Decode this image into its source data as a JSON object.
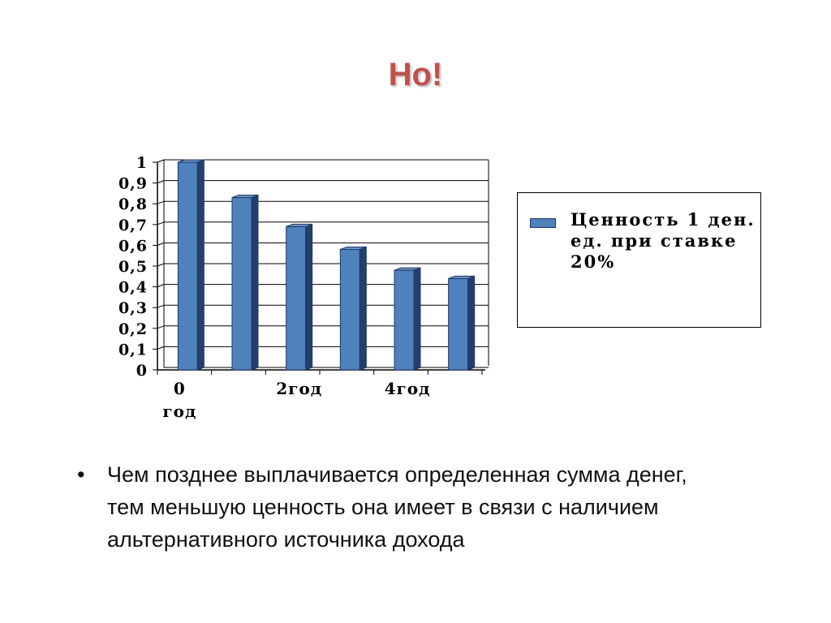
{
  "slide": {
    "title": "Но!",
    "bullet": "Чем позднее выплачивается определенная сумма денег, тем меньшую ценность она имеет в связи с наличием альтернативного источника дохода"
  },
  "chart_data": {
    "type": "bar",
    "categories": [
      "0 год",
      "",
      "2год",
      "",
      "4год",
      ""
    ],
    "series": [
      {
        "name": "Ценность 1 ден. ед. при ставке 20%",
        "values": [
          1.0,
          0.83,
          0.69,
          0.58,
          0.48,
          0.44
        ]
      }
    ],
    "y_ticks": [
      "0",
      "0,1",
      "0,2",
      "0,3",
      "0,4",
      "0,5",
      "0,6",
      "0,7",
      "0,8",
      "0,9",
      "1"
    ],
    "ylim": [
      0,
      1
    ],
    "grid": true,
    "legend_position": "right",
    "colors": {
      "bar_front": "#4f81bd",
      "bar_side": "#243f6f",
      "bar_top": "#6e94c9",
      "grid": "#000000"
    }
  },
  "legend": {
    "label": "Ценность 1 ден. ед. при ставке 20%"
  }
}
